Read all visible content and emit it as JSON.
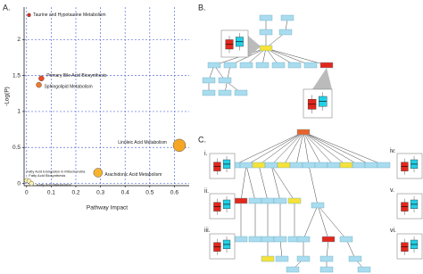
{
  "chart_data": {
    "type": "bubble",
    "x_label": "Pathway Impact",
    "y_label": "-Log(P)",
    "labels": [
      "Taurine and Hypotaurine Metabolism",
      "Primary Bile Acid Biosynthesis",
      "Sphingolipid Metabolism",
      "Linoleic Acid Metabolism",
      "Arachidonic Acid Metabolism",
      "Fatty Acid Elongation in Mitochondria",
      "Fatty Acid Biosynthesis",
      "Fatty Acid Metabolism"
    ],
    "x": [
      0.01,
      0.06,
      0.05,
      0.62,
      0.29,
      0.0,
      0.01,
      0.02
    ],
    "values": [
      2.34,
      1.46,
      1.37,
      0.53,
      0.15,
      0.04,
      0.03,
      0.0
    ],
    "sizes": [
      2,
      3,
      3,
      7,
      5,
      2.5,
      2.5,
      2.5
    ],
    "colors": [
      "#e8291c",
      "#ee4b25",
      "#f07a2a",
      "#f5a623",
      "#f6b42e",
      "#fff5b0",
      "#fff5b0",
      "#fff5b0"
    ],
    "xlim": [
      -0.01,
      0.66
    ],
    "ylim": [
      -0.03,
      2.45
    ],
    "xticks": [
      0,
      0.1,
      0.2,
      0.3,
      0.4,
      0.5,
      0.6
    ],
    "yticks": [
      0,
      0.5,
      1,
      1.5,
      2
    ],
    "grid": true,
    "grid_color": "#5b6fd8"
  },
  "panels": {
    "a": "A.",
    "b": "B.",
    "c": "C."
  },
  "insets": [
    "i.",
    "ii.",
    "iii.",
    "iv.",
    "v.",
    "vi."
  ]
}
